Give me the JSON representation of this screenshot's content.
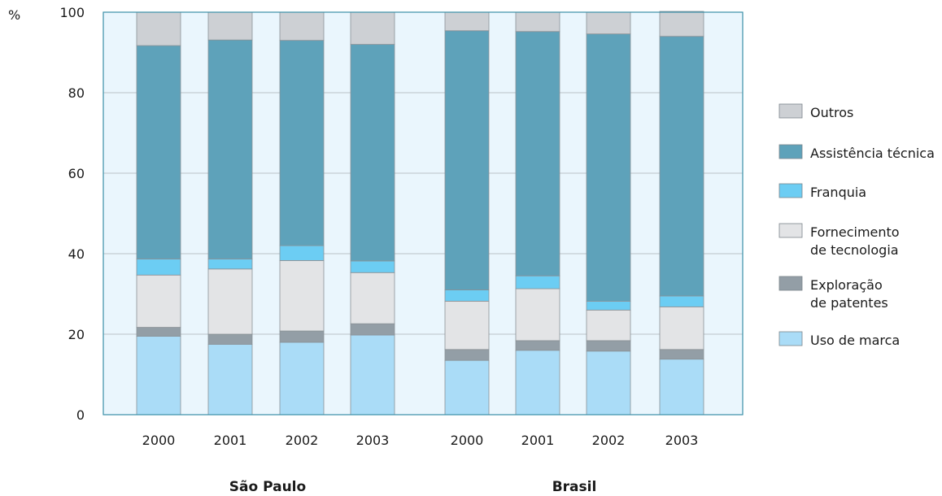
{
  "chart_data": {
    "type": "bar",
    "stacked": true,
    "y_unit_label": "%",
    "ylim": [
      0,
      100
    ],
    "yticks": [
      0,
      20,
      40,
      60,
      80,
      100
    ],
    "grid": true,
    "legend_position": "right",
    "groups": [
      {
        "name": "São Paulo",
        "categories": [
          "2000",
          "2001",
          "2002",
          "2003"
        ]
      },
      {
        "name": "Brasil",
        "categories": [
          "2000",
          "2001",
          "2002",
          "2003"
        ]
      }
    ],
    "series": [
      {
        "name": "Uso de marca",
        "color": "#aadcf7",
        "values": [
          19.5,
          17.5,
          18,
          19.8,
          13.5,
          16,
          15.8,
          13.8
        ]
      },
      {
        "name": "Exploração de patentes",
        "color": "#939ea6",
        "values": [
          2.2,
          2.5,
          2.8,
          2.8,
          2.7,
          2.4,
          2.6,
          2.4
        ]
      },
      {
        "name": "Fornecimento de tecnologia",
        "color": "#e3e4e6",
        "values": [
          13,
          16.2,
          17.5,
          12.7,
          12,
          12.9,
          7.6,
          10.6
        ]
      },
      {
        "name": "Franquia",
        "color": "#6ccdf3",
        "values": [
          4,
          2.5,
          3.7,
          2.9,
          2.8,
          3.2,
          2.2,
          2.7
        ]
      },
      {
        "name": "Assistência técnica",
        "color": "#5ea2ba",
        "values": [
          53,
          54.4,
          51,
          53.8,
          64.4,
          60.7,
          66.4,
          64.5
        ]
      },
      {
        "name": "Outros",
        "color": "#cdd0d4",
        "values": [
          8.3,
          6.9,
          7,
          8,
          4.6,
          4.8,
          5.4,
          6.2
        ]
      }
    ],
    "legend": [
      {
        "lines": [
          "Outros"
        ],
        "color": "#cdd0d4"
      },
      {
        "lines": [
          "Assistência técnica"
        ],
        "color": "#5ea2ba"
      },
      {
        "lines": [
          "Franquia"
        ],
        "color": "#6ccdf3"
      },
      {
        "lines": [
          "Fornecimento",
          "de tecnologia"
        ],
        "color": "#e3e4e6"
      },
      {
        "lines": [
          "Exploração",
          "de patentes"
        ],
        "color": "#939ea6"
      },
      {
        "lines": [
          "Uso de marca"
        ],
        "color": "#aadcf7"
      }
    ],
    "colors": {
      "plot_background": "#eaf6fd",
      "axis": "#3a8fa8",
      "grid": "#b9c3c8"
    }
  }
}
